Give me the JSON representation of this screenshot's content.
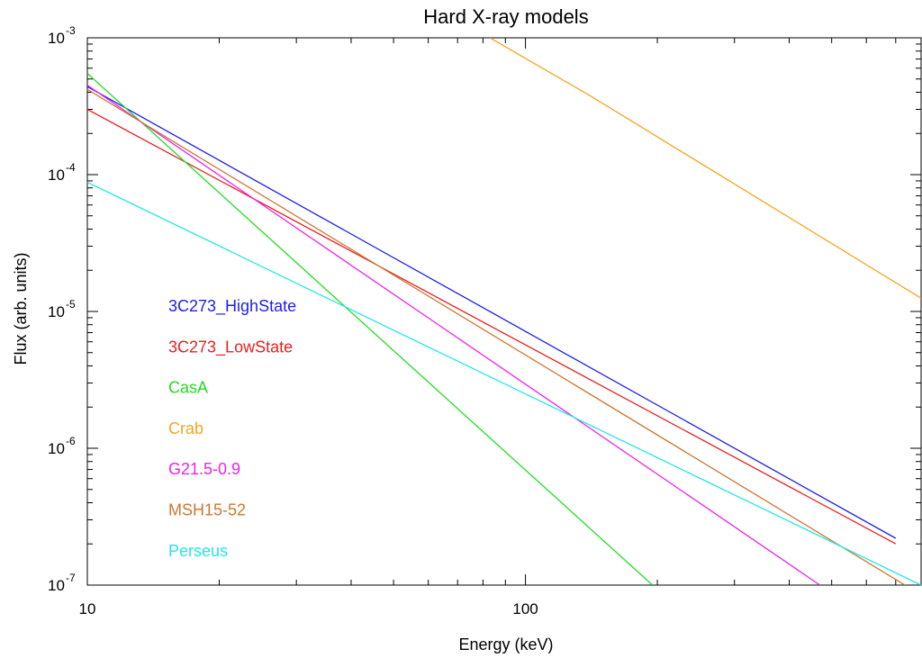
{
  "chart_data": {
    "type": "line",
    "title": "Hard X-ray models",
    "xlabel": "Energy (keV)",
    "ylabel": "Flux (arb. units)",
    "xscale": "log",
    "yscale": "log",
    "xlim": [
      10,
      800
    ],
    "ylim": [
      1e-07,
      0.001
    ],
    "grid": false,
    "legend_position": "left-center",
    "x_ticks": [
      {
        "value": 10,
        "label": "10"
      },
      {
        "value": 100,
        "label": "100"
      }
    ],
    "y_ticks": [
      {
        "value": 0.001,
        "base": "10",
        "exp": "-3"
      },
      {
        "value": 0.0001,
        "base": "10",
        "exp": "-4"
      },
      {
        "value": 1e-05,
        "base": "10",
        "exp": "-5"
      },
      {
        "value": 1e-06,
        "base": "10",
        "exp": "-6"
      },
      {
        "value": 1e-07,
        "base": "10",
        "exp": "-7"
      }
    ],
    "series": [
      {
        "name": "3C273_HighState",
        "color": "#1f1fe6",
        "x": [
          10,
          700
        ],
        "y": [
          0.00044,
          2.2e-07
        ]
      },
      {
        "name": "3C273_LowState",
        "color": "#e61f1f",
        "x": [
          10,
          700
        ],
        "y": [
          0.0003,
          2e-07
        ]
      },
      {
        "name": "CasA",
        "color": "#22dd22",
        "x": [
          10,
          195
        ],
        "y": [
          0.00055,
          1e-07
        ]
      },
      {
        "name": "Crab",
        "color": "#f5a623",
        "x": [
          83,
          140,
          800
        ],
        "y": [
          0.001,
          0.00038,
          1.25e-05
        ]
      },
      {
        "name": "G21.5-0.9",
        "color": "#ee22ee",
        "x": [
          10,
          470
        ],
        "y": [
          0.00045,
          1e-07
        ]
      },
      {
        "name": "MSH15-52",
        "color": "#cc7733",
        "x": [
          10,
          735
        ],
        "y": [
          0.00042,
          1e-07
        ]
      },
      {
        "name": "Perseus",
        "color": "#22e6e6",
        "x": [
          10,
          800
        ],
        "y": [
          8.8e-05,
          1e-07
        ]
      }
    ]
  }
}
